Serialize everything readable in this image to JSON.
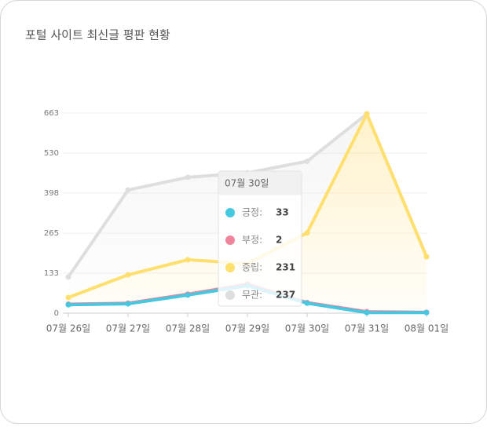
{
  "chart_data": {
    "type": "line",
    "stacked": true,
    "title": "포털 사이트 최신글 평판 현황",
    "categories": [
      "07월 26일",
      "07월 27일",
      "07월 28일",
      "07월 29일",
      "07월 30일",
      "07월 31일",
      "08월 01일"
    ],
    "series": [
      {
        "name": "긍정",
        "color": "#45c8e0",
        "values": [
          28,
          31,
          60,
          91,
          33,
          2,
          2
        ]
      },
      {
        "name": "부정",
        "color": "#f0849a",
        "values": [
          2,
          2,
          3,
          5,
          2,
          3,
          1
        ]
      },
      {
        "name": "중립",
        "color": "#ffdf6e",
        "values": [
          22,
          94,
          114,
          68,
          231,
          655,
          184
        ]
      },
      {
        "name": "무관",
        "color": "#dedede",
        "values": [
          68,
          281,
          273,
          301,
          237,
          0,
          0
        ]
      }
    ],
    "ylim": [
      0,
      663
    ],
    "yticks": [
      0,
      133,
      265,
      398,
      530,
      663
    ],
    "grid": true,
    "tooltip": {
      "title": "07월 30일",
      "items": [
        {
          "label": "긍정:",
          "value": 33
        },
        {
          "label": "부정:",
          "value": 2
        },
        {
          "label": "중립:",
          "value": 231
        },
        {
          "label": "무관:",
          "value": 237
        }
      ]
    }
  }
}
